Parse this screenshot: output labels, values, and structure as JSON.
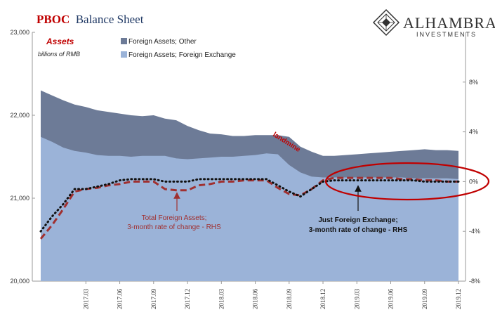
{
  "header": {
    "title_part1": "PBOC",
    "title_part2": "Balance Sheet",
    "logo_main": "ALHAMBRA",
    "logo_sub": "INVESTMENTS"
  },
  "chart_data": {
    "type": "area",
    "subtitle": "Assets",
    "units": "billions of RMB",
    "categories": [
      "2016.11",
      "2016.12",
      "2017.01",
      "2017.02",
      "2017.03",
      "2017.04",
      "2017.05",
      "2017.06",
      "2017.07",
      "2017.08",
      "2017.09",
      "2017.10",
      "2017.11",
      "2017.12",
      "2018.01",
      "2018.02",
      "2018.03",
      "2018.04",
      "2018.05",
      "2018.06",
      "2018.07",
      "2018.08",
      "2018.09",
      "2018.10",
      "2018.11",
      "2018.12",
      "2019.01",
      "2019.02",
      "2019.03",
      "2019.04",
      "2019.05",
      "2019.06",
      "2019.07",
      "2019.08",
      "2019.09",
      "2019.10",
      "2019.11",
      "2019.12"
    ],
    "x_tick_labels": [
      "2017.03",
      "2017.06",
      "2017.09",
      "2017.12",
      "2018.03",
      "2018.06",
      "2018.09",
      "2018.12",
      "2019.03",
      "2019.06",
      "2019.09",
      "2019.12"
    ],
    "y_left": {
      "min": 20000,
      "max": 23000,
      "ticks": [
        "20,000",
        "21,000",
        "22,000",
        "23,000"
      ]
    },
    "y_right": {
      "min": -8,
      "max": 12,
      "ticks": [
        "-8%",
        "-4%",
        "0%",
        "4%",
        "8%"
      ]
    },
    "series": [
      {
        "name": "Foreign Assets; Other",
        "color": "#6d7b97",
        "axis": "left",
        "values": [
          22300,
          22240,
          22180,
          22130,
          22100,
          22060,
          22040,
          22020,
          22000,
          21990,
          22000,
          21960,
          21940,
          21870,
          21820,
          21780,
          21770,
          21750,
          21750,
          21760,
          21760,
          21760,
          21740,
          21620,
          21560,
          21510,
          21510,
          21520,
          21530,
          21540,
          21550,
          21560,
          21570,
          21580,
          21590,
          21580,
          21580,
          21570
        ]
      },
      {
        "name": "Foreign Assets; Foreign Exchange",
        "color": "#9bb3d8",
        "axis": "left",
        "values": [
          21740,
          21680,
          21610,
          21570,
          21550,
          21520,
          21510,
          21510,
          21500,
          21510,
          21510,
          21510,
          21480,
          21470,
          21480,
          21490,
          21500,
          21500,
          21510,
          21520,
          21540,
          21530,
          21400,
          21310,
          21260,
          21250,
          21250,
          21250,
          21250,
          21250,
          21250,
          21250,
          21250,
          21240,
          21240,
          21240,
          21240,
          21230
        ]
      },
      {
        "name": "Total Foreign Assets; 3-month rate of change - RHS",
        "color": "#a03030",
        "axis": "right",
        "style": "dashed",
        "values": [
          -4.6,
          -3.5,
          -2.2,
          -0.8,
          -0.6,
          -0.5,
          -0.3,
          -0.2,
          0,
          0,
          0,
          -0.6,
          -0.7,
          -0.7,
          -0.3,
          -0.2,
          0,
          0,
          0.1,
          0.1,
          0.1,
          -0.5,
          -1,
          -1.1,
          -0.6,
          0.1,
          0.3,
          0.3,
          0.3,
          0.3,
          0.3,
          0.3,
          0.2,
          0.2,
          0.1,
          0.1,
          0,
          0
        ]
      },
      {
        "name": "Just Foreign Exchange; 3-month rate of change - RHS",
        "color": "#111111",
        "axis": "right",
        "style": "dotted",
        "values": [
          -4,
          -2.8,
          -1.8,
          -0.6,
          -0.6,
          -0.4,
          -0.2,
          0.1,
          0.2,
          0.2,
          0.2,
          0,
          0,
          0,
          0.2,
          0.2,
          0.2,
          0.2,
          0.2,
          0.2,
          0.2,
          -0.3,
          -0.8,
          -1.2,
          -0.6,
          0,
          0.1,
          0.1,
          0.1,
          0.1,
          0.1,
          0.1,
          0.1,
          0.1,
          0,
          0,
          0,
          0
        ]
      }
    ],
    "annotations": {
      "total_line1": "Total Foreign Assets;",
      "total_line2": "3-month rate of change - RHS",
      "fx_line1": "Just Foreign Exchange;",
      "fx_line2": "3-month rate of change - RHS",
      "landmine": "landmine"
    }
  }
}
